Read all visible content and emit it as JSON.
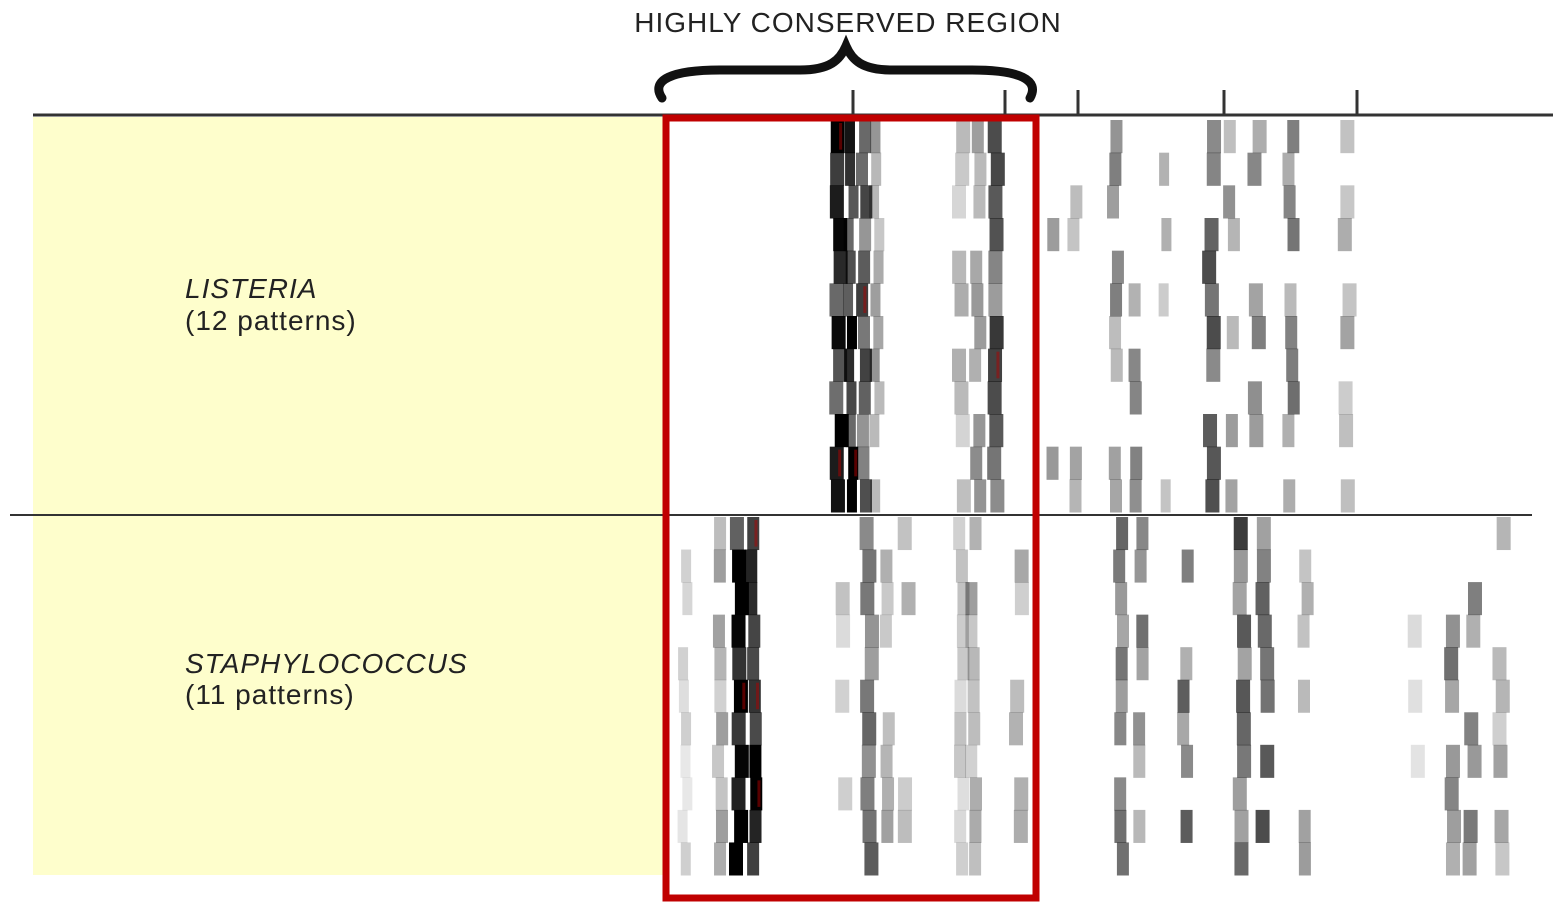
{
  "title": "HIGHLY CONSERVED REGION",
  "groups": [
    {
      "name": "LISTERIA",
      "patterns": "(12 patterns)"
    },
    {
      "name": "STAPHYLOCOCCUS",
      "patterns": "(11 patterns)"
    }
  ]
}
